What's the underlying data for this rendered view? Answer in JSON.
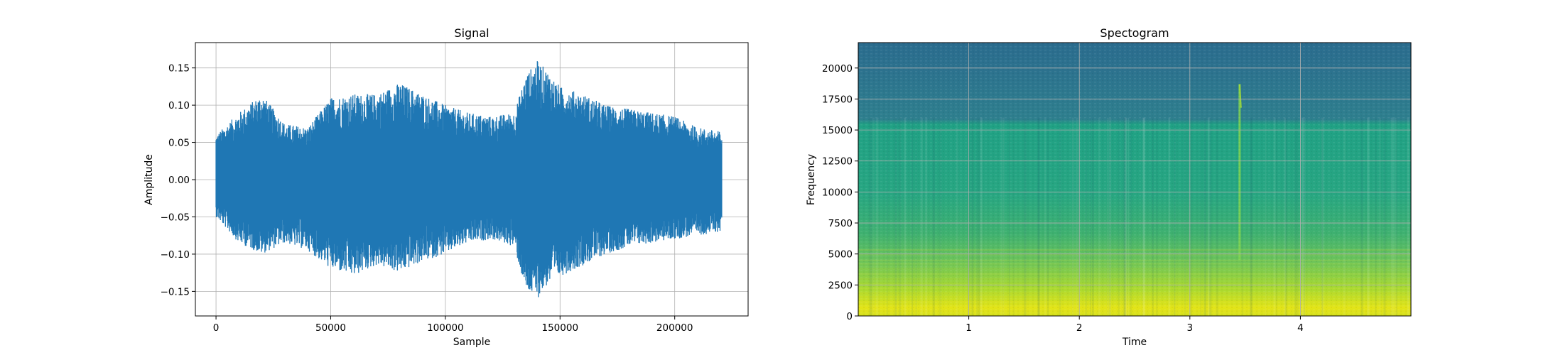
{
  "chart_data": [
    {
      "type": "line",
      "title": "Signal",
      "xlabel": "Sample",
      "ylabel": "Amplitude",
      "xlim": [
        -9000,
        232000
      ],
      "ylim": [
        -0.183,
        0.184
      ],
      "xticks": [
        0,
        50000,
        100000,
        150000,
        200000
      ],
      "xtick_labels": [
        "0",
        "50000",
        "100000",
        "150000",
        "200000"
      ],
      "yticks": [
        -0.15,
        -0.1,
        -0.05,
        0.0,
        0.05,
        0.1,
        0.15
      ],
      "ytick_labels": [
        "−0.15",
        "−0.10",
        "−0.05",
        "0.00",
        "0.05",
        "0.10",
        "0.15"
      ],
      "grid": true,
      "color": "#1f77b4",
      "n_samples": 220500,
      "envelope": {
        "x": [
          0,
          10000,
          20000,
          30000,
          40000,
          50000,
          60000,
          70000,
          80000,
          90000,
          100000,
          110000,
          120000,
          130000,
          135000,
          140000,
          145000,
          150000,
          160000,
          170000,
          180000,
          190000,
          200000,
          210000,
          220000
        ],
        "upper": [
          0.06,
          0.09,
          0.115,
          0.075,
          0.07,
          0.11,
          0.115,
          0.115,
          0.13,
          0.115,
          0.1,
          0.09,
          0.085,
          0.09,
          0.14,
          0.16,
          0.145,
          0.125,
          0.115,
          0.1,
          0.095,
          0.09,
          0.085,
          0.07,
          0.065
        ],
        "lower": [
          -0.05,
          -0.085,
          -0.1,
          -0.085,
          -0.095,
          -0.12,
          -0.13,
          -0.115,
          -0.125,
          -0.11,
          -0.1,
          -0.085,
          -0.08,
          -0.09,
          -0.15,
          -0.16,
          -0.14,
          -0.13,
          -0.115,
          -0.1,
          -0.09,
          -0.085,
          -0.08,
          -0.075,
          -0.07
        ]
      }
    },
    {
      "type": "heatmap",
      "title": "Spectogram",
      "xlabel": "Time",
      "ylabel": "Frequency",
      "xlim": [
        0,
        5
      ],
      "ylim": [
        0,
        22050
      ],
      "xticks": [
        1,
        2,
        3,
        4
      ],
      "xtick_labels": [
        "1",
        "2",
        "3",
        "4"
      ],
      "yticks": [
        0,
        2500,
        5000,
        7500,
        10000,
        12500,
        15000,
        17500,
        20000
      ],
      "ytick_labels": [
        "0",
        "2500",
        "5000",
        "7500",
        "10000",
        "12500",
        "15000",
        "17500",
        "20000"
      ],
      "grid": true,
      "colormap": "viridis",
      "features": {
        "high_band_cutoff_hz": 16000,
        "energy_concentrated_below_hz": 5000,
        "transient_time": 3.45,
        "transient_top_hz": 18700
      }
    }
  ]
}
